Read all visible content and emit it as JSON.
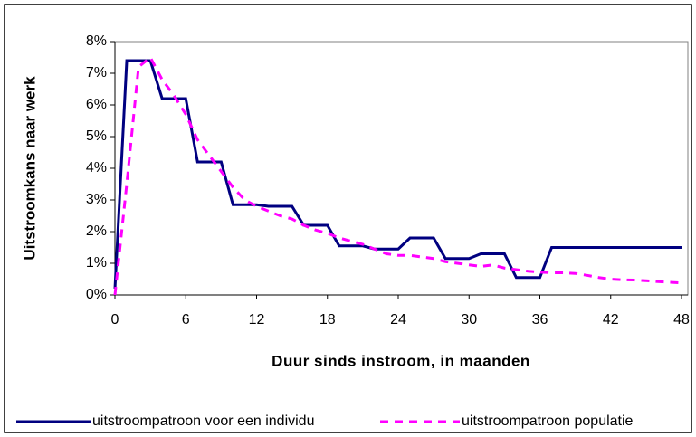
{
  "chart_data": {
    "type": "line",
    "x_label": "Duur sinds instroom, in maanden",
    "y_label": "Uitstroomkans naar werk",
    "x": [
      0,
      1,
      2,
      3,
      4,
      5,
      6,
      7,
      8,
      9,
      10,
      11,
      12,
      13,
      14,
      15,
      16,
      17,
      18,
      19,
      20,
      21,
      22,
      23,
      24,
      25,
      26,
      27,
      28,
      29,
      30,
      31,
      32,
      33,
      34,
      35,
      36,
      37,
      38,
      39,
      40,
      41,
      42,
      43,
      44,
      45,
      46,
      47,
      48
    ],
    "series": [
      {
        "name": "uitstroompatroon voor een individu",
        "color": "#000080",
        "dash": false,
        "values": [
          0.2,
          7.4,
          7.4,
          7.4,
          6.2,
          6.2,
          6.2,
          4.2,
          4.2,
          4.2,
          2.85,
          2.85,
          2.85,
          2.8,
          2.8,
          2.8,
          2.2,
          2.2,
          2.2,
          1.55,
          1.55,
          1.55,
          1.45,
          1.45,
          1.45,
          1.8,
          1.8,
          1.8,
          1.15,
          1.15,
          1.15,
          1.3,
          1.3,
          1.3,
          0.55,
          0.55,
          0.55,
          1.5,
          1.5,
          1.5,
          1.5,
          1.5,
          1.5,
          1.5,
          1.5,
          1.5,
          1.5,
          1.5,
          1.5
        ]
      },
      {
        "name": "uitstroompatroon populatie",
        "color": "#ff00ff",
        "dash": true,
        "values": [
          0,
          3.5,
          7.2,
          7.5,
          6.8,
          6.3,
          5.7,
          4.9,
          4.4,
          3.9,
          3.4,
          3.0,
          2.8,
          2.65,
          2.5,
          2.4,
          2.2,
          2.05,
          1.95,
          1.8,
          1.7,
          1.6,
          1.45,
          1.3,
          1.25,
          1.25,
          1.2,
          1.15,
          1.05,
          1.0,
          0.95,
          0.9,
          0.95,
          0.85,
          0.8,
          0.75,
          0.72,
          0.7,
          0.7,
          0.68,
          0.62,
          0.55,
          0.5,
          0.48,
          0.47,
          0.45,
          0.42,
          0.4,
          0.38
        ]
      }
    ],
    "xlim": [
      0,
      48
    ],
    "xticks": [
      0,
      6,
      12,
      18,
      24,
      30,
      36,
      42,
      48
    ],
    "ylim": [
      0,
      8
    ],
    "yticks": [
      {
        "value": 0,
        "label": "0%"
      },
      {
        "value": 1,
        "label": "1%"
      },
      {
        "value": 2,
        "label": "2%"
      },
      {
        "value": 3,
        "label": "3%"
      },
      {
        "value": 4,
        "label": "4%"
      },
      {
        "value": 5,
        "label": "5%"
      },
      {
        "value": 6,
        "label": "6%"
      },
      {
        "value": 7,
        "label": "7%"
      },
      {
        "value": 8,
        "label": "8%"
      }
    ]
  }
}
